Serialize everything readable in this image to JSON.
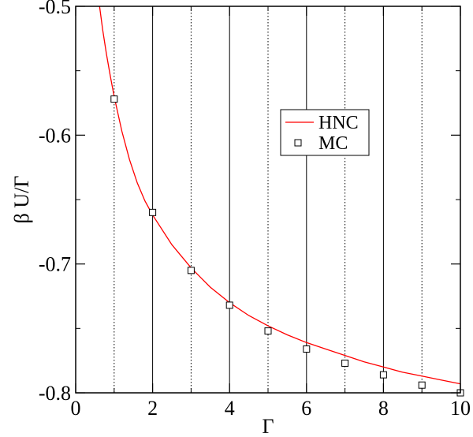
{
  "chart_data": {
    "type": "line",
    "title": "",
    "xlabel": "Γ",
    "ylabel": "β U/Γ",
    "xlim": [
      0,
      10
    ],
    "ylim": [
      -0.8,
      -0.5
    ],
    "x_ticks": [
      0,
      2,
      4,
      6,
      8,
      10
    ],
    "x_tick_labels": [
      "0",
      "2",
      "4",
      "6",
      "8",
      "10"
    ],
    "y_ticks": [
      -0.8,
      -0.7,
      -0.6,
      -0.5
    ],
    "y_tick_labels": [
      "-0.8",
      "-0.7",
      "-0.6",
      "-0.5"
    ],
    "major_vertical_grid": [
      2,
      4,
      6,
      8
    ],
    "minor_vertical_grid": [
      1,
      3,
      5,
      7,
      9
    ],
    "legend_placement": "center-right",
    "series": [
      {
        "name": "HNC",
        "kind": "line",
        "color": "#ff0000",
        "x": [
          0.62,
          0.7,
          0.8,
          0.9,
          1.0,
          1.2,
          1.4,
          1.6,
          1.8,
          2.0,
          2.5,
          3.0,
          3.5,
          4.0,
          4.5,
          5.0,
          5.5,
          6.0,
          6.5,
          7.0,
          7.5,
          8.0,
          8.5,
          9.0,
          9.5,
          10.0
        ],
        "y": [
          -0.5,
          -0.518,
          -0.537,
          -0.554,
          -0.57,
          -0.597,
          -0.619,
          -0.637,
          -0.651,
          -0.662,
          -0.685,
          -0.703,
          -0.718,
          -0.73,
          -0.74,
          -0.748,
          -0.755,
          -0.761,
          -0.766,
          -0.771,
          -0.776,
          -0.78,
          -0.784,
          -0.787,
          -0.79,
          -0.793
        ]
      },
      {
        "name": "MC",
        "kind": "scatter",
        "marker": "open-square",
        "color": "#000000",
        "x": [
          1,
          2,
          3,
          4,
          5,
          6,
          7,
          8,
          9,
          10
        ],
        "y": [
          -0.572,
          -0.66,
          -0.705,
          -0.732,
          -0.752,
          -0.766,
          -0.777,
          -0.786,
          -0.794,
          -0.8
        ]
      }
    ]
  }
}
